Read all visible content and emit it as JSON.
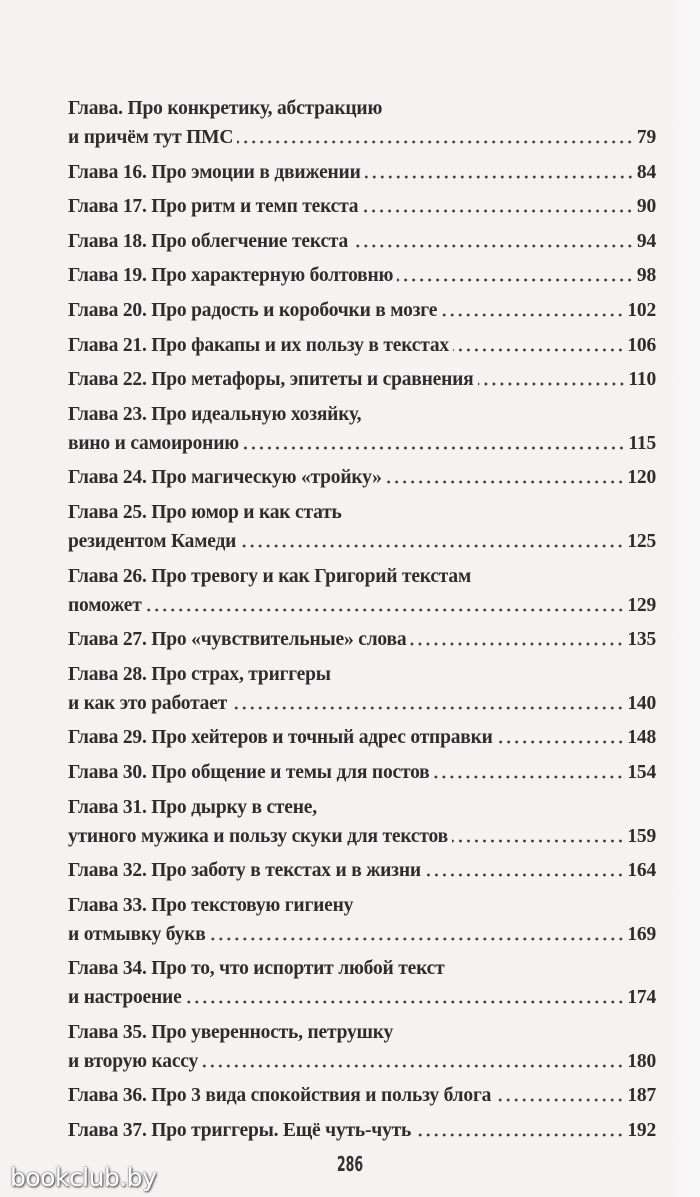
{
  "entries": [
    {
      "lines": [
        "Глава. Про конкретику, абстракцию",
        "и причём тут ПМС"
      ],
      "page": "79"
    },
    {
      "lines": [
        "Глава 16. Про эмоции в движении"
      ],
      "page": "84"
    },
    {
      "lines": [
        "Глава 17. Про ритм и темп текста"
      ],
      "page": "90"
    },
    {
      "lines": [
        "Глава 18. Про облегчение текста"
      ],
      "page": "94"
    },
    {
      "lines": [
        "Глава 19. Про характерную болтовню"
      ],
      "page": "98"
    },
    {
      "lines": [
        "Глава 20. Про радость и коробочки в мозге"
      ],
      "page": "102"
    },
    {
      "lines": [
        "Глава 21. Про факапы и их пользу в текстах"
      ],
      "page": "106"
    },
    {
      "lines": [
        "Глава 22. Про метафоры, эпитеты и сравнения"
      ],
      "page": "110"
    },
    {
      "lines": [
        "Глава 23. Про идеальную хозяйку,",
        "вино и самоиронию"
      ],
      "page": "115"
    },
    {
      "lines": [
        "Глава 24. Про магическую «тройку»"
      ],
      "page": "120"
    },
    {
      "lines": [
        "Глава 25. Про юмор и как стать",
        "резидентом Камеди"
      ],
      "page": "125"
    },
    {
      "lines": [
        "Глава 26. Про тревогу и как Григорий текстам",
        "поможет"
      ],
      "page": "129"
    },
    {
      "lines": [
        "Глава 27. Про «чувствительные» слова"
      ],
      "page": "135"
    },
    {
      "lines": [
        "Глава 28. Про страх, триггеры",
        "и как это работает"
      ],
      "page": "140"
    },
    {
      "lines": [
        "Глава 29. Про хейтеров и точный адрес отправки"
      ],
      "page": "148"
    },
    {
      "lines": [
        "Глава 30. Про общение и темы для постов"
      ],
      "page": "154"
    },
    {
      "lines": [
        "Глава 31. Про дырку в стене,",
        "утиного мужика и пользу скуки для текстов"
      ],
      "page": "159"
    },
    {
      "lines": [
        "Глава 32. Про заботу в текстах и в жизни"
      ],
      "page": "164"
    },
    {
      "lines": [
        "Глава 33. Про текстовую гигиену",
        "и отмывку букв"
      ],
      "page": "169"
    },
    {
      "lines": [
        "Глава 34. Про то, что испортит любой текст",
        "и настроение"
      ],
      "page": "174"
    },
    {
      "lines": [
        "Глава 35. Про уверенность, петрушку",
        "и вторую кассу"
      ],
      "page": "180"
    },
    {
      "lines": [
        "Глава 36. Про 3 вида спокойствия и пользу блога"
      ],
      "page": "187"
    },
    {
      "lines": [
        "Глава 37. Про триггеры. Ещё чуть-чуть"
      ],
      "page": "192"
    }
  ],
  "folio": "286",
  "watermark": "bookclub.by"
}
